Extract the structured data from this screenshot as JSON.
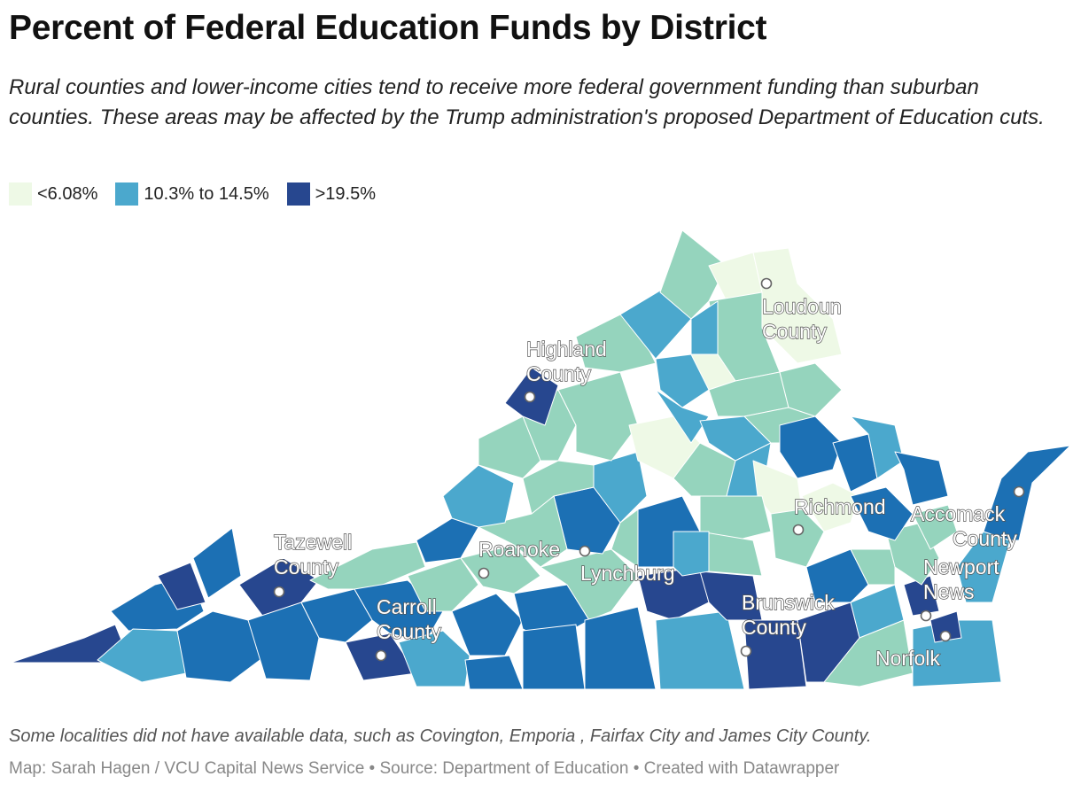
{
  "title": "Percent of Federal Education Funds by District",
  "subtitle": "Rural counties and lower-income cities tend to receive more federal government funding than suburban counties. These areas may be affected by the Trump administration's proposed Department of Education cuts.",
  "legend": [
    {
      "label": "<6.08%",
      "color": "#eef9e6"
    },
    {
      "label": "10.3% to 14.5%",
      "color": "#4ba8cd"
    },
    {
      "label": ">19.5%",
      "color": "#27478f"
    }
  ],
  "palette": {
    "lowest": "#eef9e6",
    "low": "#95d4bd",
    "mid": "#4ba8cd",
    "high": "#1c70b4",
    "highest": "#27478f"
  },
  "cities": [
    {
      "name": "Highland County",
      "lines": [
        "Highland",
        "County"
      ]
    },
    {
      "name": "Loudoun County",
      "lines": [
        "Loudoun",
        "County"
      ]
    },
    {
      "name": "Tazewell County",
      "lines": [
        "Tazewell",
        "County"
      ]
    },
    {
      "name": "Roanoke",
      "lines": [
        "Roanoke"
      ]
    },
    {
      "name": "Lynchburg",
      "lines": [
        "Lynchburg"
      ]
    },
    {
      "name": "Richmond",
      "lines": [
        "Richmond"
      ]
    },
    {
      "name": "Accomack County",
      "lines": [
        "Accomack",
        "County"
      ]
    },
    {
      "name": "Carroll County",
      "lines": [
        "Carroll",
        "County"
      ]
    },
    {
      "name": "Brunswick County",
      "lines": [
        "Brunswick",
        "County"
      ]
    },
    {
      "name": "Newport News",
      "lines": [
        "Newport",
        "News"
      ]
    },
    {
      "name": "Norfolk",
      "lines": [
        "Norfolk"
      ]
    }
  ],
  "note": "Some localities did not have available data, such as Covington, Emporia , Fairfax City and James City County.",
  "credit": "Map: Sarah Hagen / VCU Capital News Service • Source: Department of Education • Created with Datawrapper"
}
